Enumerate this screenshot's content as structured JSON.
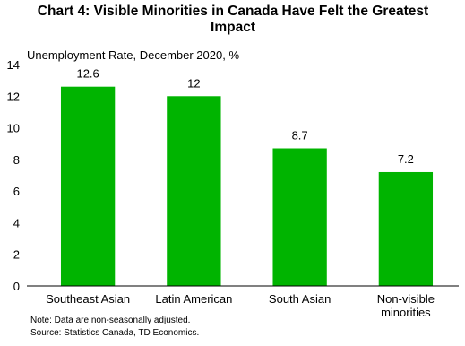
{
  "chart_data": {
    "type": "bar",
    "title": "Chart 4: Visible Minorities in Canada Have Felt the Greatest Impact",
    "subtitle": "Unemployment Rate, December 2020, %",
    "categories": [
      "Southeast Asian",
      "Latin American",
      "South Asian",
      "Non-visible minorities"
    ],
    "values": [
      12.6,
      12,
      8.7,
      7.2
    ],
    "color": "#00b400",
    "ylim": [
      0,
      14
    ],
    "yticks": [
      0,
      2,
      4,
      6,
      8,
      10,
      12,
      14
    ],
    "grid": false,
    "data_labels": true,
    "notes": [
      "Note: Data are non-seasonally adjusted.",
      "Source: Statistics Canada, TD Economics."
    ]
  }
}
